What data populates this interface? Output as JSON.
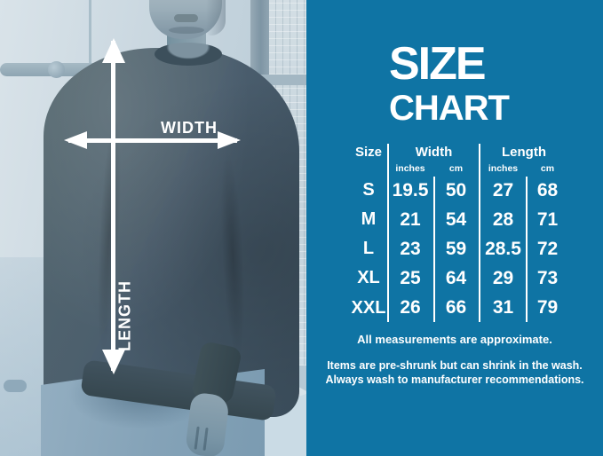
{
  "colors": {
    "panel_background": "#0f74a4",
    "panel_text": "#ffffff",
    "overlay_arrows": "#ffffff",
    "photo_duotone_tint": "#b4c8d4",
    "sweatshirt": "#4b5e6e"
  },
  "measure_overlay": {
    "width_label": "WIDTH",
    "length_label": "LENGTH"
  },
  "panel": {
    "title_line1": "SIZE",
    "title_line2": "CHART",
    "table": {
      "size_header": "Size",
      "width_header": "Width",
      "length_header": "Length",
      "unit_inches": "inches",
      "unit_cm": "cm",
      "rows": [
        {
          "size": "S",
          "width_in": "19.5",
          "width_cm": "50",
          "length_in": "27",
          "length_cm": "68"
        },
        {
          "size": "M",
          "width_in": "21",
          "width_cm": "54",
          "length_in": "28",
          "length_cm": "71"
        },
        {
          "size": "L",
          "width_in": "23",
          "width_cm": "59",
          "length_in": "28.5",
          "length_cm": "72"
        },
        {
          "size": "XL",
          "width_in": "25",
          "width_cm": "64",
          "length_in": "29",
          "length_cm": "73"
        },
        {
          "size": "XXL",
          "width_in": "26",
          "width_cm": "66",
          "length_in": "31",
          "length_cm": "79"
        }
      ]
    },
    "notes": {
      "approx": "All measurements are approximate.",
      "care": "Items are pre-shrunk but can shrink in the wash. Always wash to manufacturer recommendations."
    }
  },
  "chart_data": {
    "type": "table",
    "title": "SIZE CHART",
    "columns": [
      "Size",
      "Width inches",
      "Width cm",
      "Length inches",
      "Length cm"
    ],
    "rows": [
      [
        "S",
        19.5,
        50,
        27,
        68
      ],
      [
        "M",
        21,
        54,
        28,
        71
      ],
      [
        "L",
        23,
        59,
        28.5,
        72
      ],
      [
        "XL",
        25,
        64,
        29,
        73
      ],
      [
        "XXL",
        26,
        66,
        31,
        79
      ]
    ],
    "annotations": [
      "WIDTH",
      "LENGTH",
      "All measurements are approximate.",
      "Items are pre-shrunk but can shrink in the wash. Always wash to manufacturer recommendations."
    ]
  }
}
